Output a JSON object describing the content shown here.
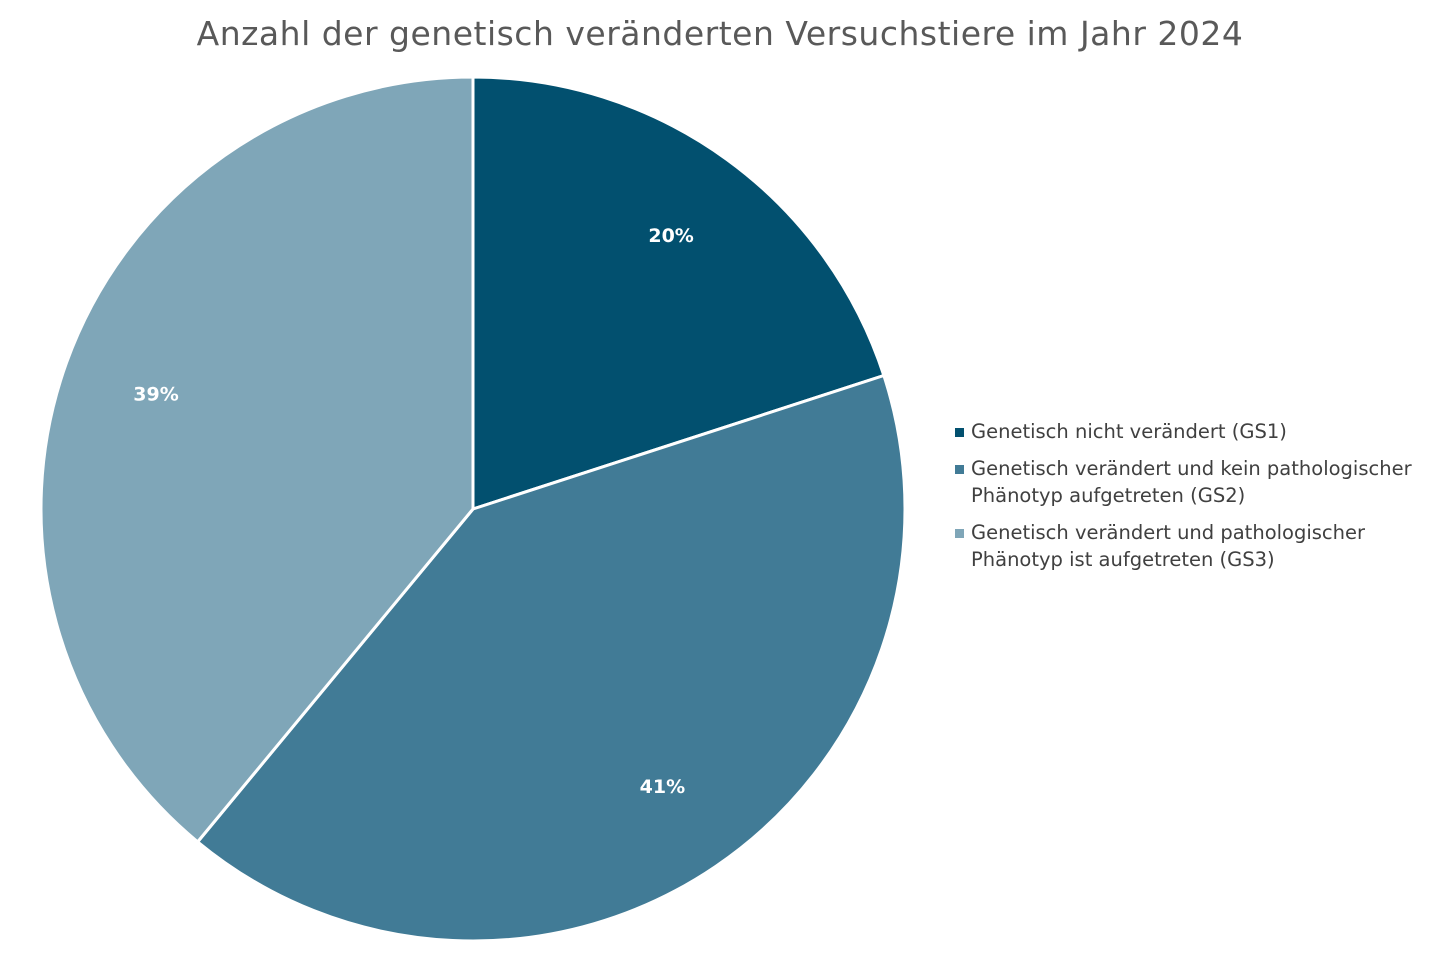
{
  "chart_data": {
    "type": "pie",
    "title": "Anzahl der genetisch veränderten Versuchstiere im Jahr 2024",
    "slices": [
      {
        "name": "Genetisch nicht verändert (GS1)",
        "value": 20,
        "label": "20%",
        "color": "#02506f"
      },
      {
        "name": "Genetisch verändert und kein pathologischer Phänotyp aufgetreten (GS2)",
        "value": 41,
        "label": "41%",
        "color": "#417b96"
      },
      {
        "name": "Genetisch verändert und pathologischer Phänotyp ist aufgetreten (GS3)",
        "value": 39,
        "label": "39%",
        "color": "#7fa6b8"
      }
    ],
    "start_angle": "12 o'clock",
    "direction": "clockwise",
    "legend_position": "right"
  }
}
